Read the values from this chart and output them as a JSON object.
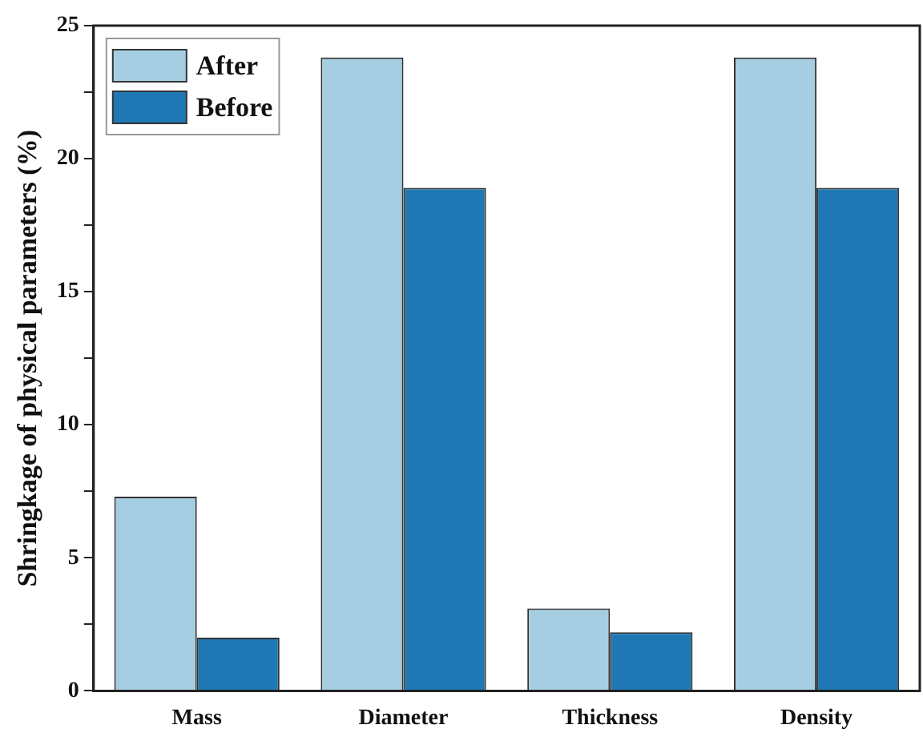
{
  "chart_data": {
    "type": "bar",
    "ylabel": "Shringkage of physical parameters (%)",
    "categories": [
      "Mass",
      "Diameter",
      "Thickness",
      "Density"
    ],
    "series": [
      {
        "name": "After",
        "color": "#a6cee3",
        "values": [
          7.3,
          23.8,
          3.1,
          23.8
        ]
      },
      {
        "name": "Before",
        "color": "#1f78b4",
        "values": [
          2.0,
          18.9,
          2.2,
          18.9
        ]
      }
    ],
    "ylim": [
      0,
      25
    ],
    "yticks": [
      0,
      {
        "value": 2.5,
        "label": null
      },
      5,
      {
        "value": 7.5,
        "label": null
      },
      10,
      {
        "value": 12.5,
        "label": null
      },
      15,
      {
        "value": 17.5,
        "label": null
      },
      20,
      {
        "value": 22.5,
        "label": null
      },
      25
    ],
    "grid": false,
    "legend": "top left"
  }
}
